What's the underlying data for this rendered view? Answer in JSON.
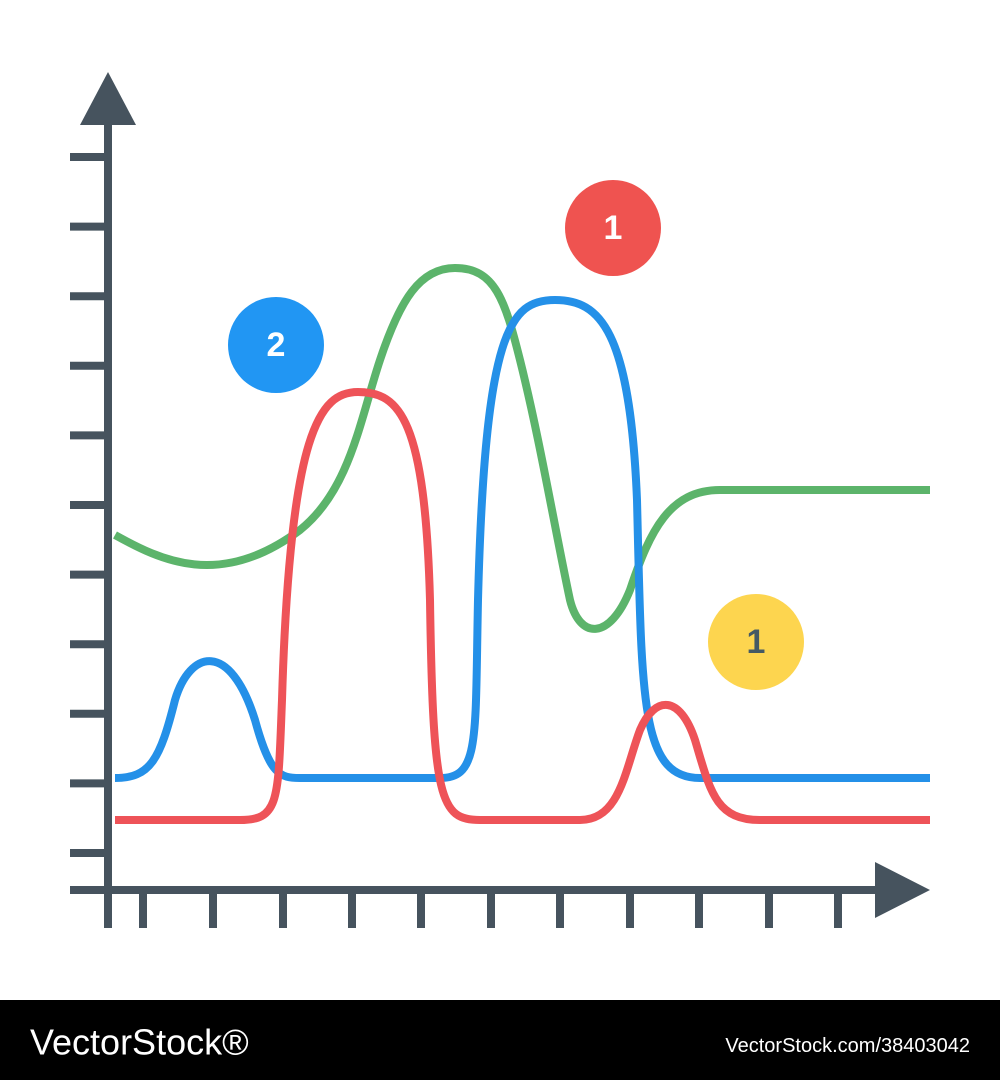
{
  "badges": [
    {
      "label": "1"
    },
    {
      "label": "2"
    },
    {
      "label": "1"
    }
  ],
  "footer": {
    "brand": "VectorStock®",
    "reference": "VectorStock.com/38403042"
  }
}
